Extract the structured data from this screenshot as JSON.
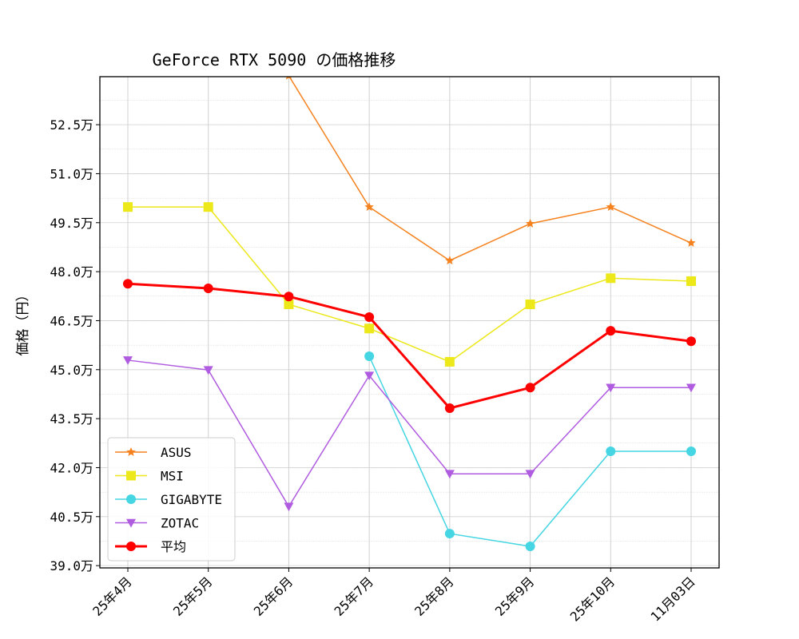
{
  "chart_data": {
    "type": "line",
    "title": "GeForce RTX 5090 の価格推移",
    "xlabel": "",
    "ylabel": "価格（円）",
    "categories": [
      "25年4月",
      "25年5月",
      "25年6月",
      "25年7月",
      "25年8月",
      "25年9月",
      "25年10月",
      "11月03日"
    ],
    "ylim": [
      38.93,
      53.97
    ],
    "yticks": [
      39.0,
      40.5,
      42.0,
      43.5,
      45.0,
      46.5,
      48.0,
      49.5,
      51.0,
      52.5
    ],
    "ytick_labels": [
      "39.0万",
      "40.5万",
      "42.0万",
      "43.5万",
      "45.0万",
      "46.5万",
      "48.0万",
      "49.5万",
      "51.0万",
      "52.5万"
    ],
    "y_unit": "万円",
    "grid": true,
    "legend_position": "lower-left",
    "series": [
      {
        "name": "ASUS",
        "color": "#f5821f",
        "marker": "star",
        "values": [
          null,
          null,
          54.0,
          49.98,
          48.34,
          49.47,
          49.98,
          48.88
        ]
      },
      {
        "name": "MSI",
        "color": "#ece81a",
        "marker": "square",
        "values": [
          49.98,
          49.98,
          47.0,
          46.26,
          45.24,
          47.0,
          47.8,
          47.71
        ]
      },
      {
        "name": "GIGABYTE",
        "color": "#45d5e3",
        "marker": "circle",
        "values": [
          null,
          null,
          null,
          45.41,
          39.98,
          39.59,
          42.5,
          42.5
        ]
      },
      {
        "name": "ZOTAC",
        "color": "#b05ce0",
        "marker": "triangle-down",
        "values": [
          45.29,
          44.99,
          40.81,
          44.82,
          41.81,
          41.81,
          44.45,
          44.45
        ]
      },
      {
        "name": "平均",
        "color": "#ff0000",
        "marker": "circle",
        "bold": true,
        "values": [
          47.63,
          47.49,
          47.24,
          46.61,
          43.82,
          44.45,
          46.19,
          45.87
        ]
      }
    ]
  }
}
